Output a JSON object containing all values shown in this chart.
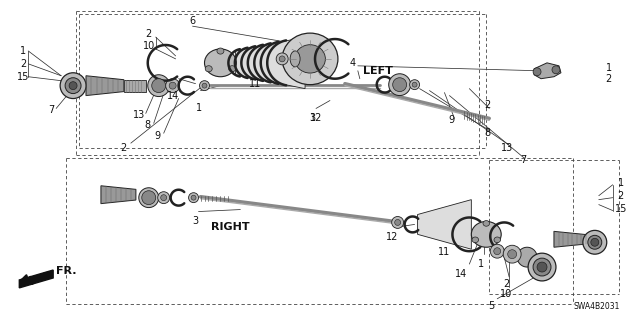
{
  "bg_color": "#ffffff",
  "fig_width": 6.4,
  "fig_height": 3.19,
  "dpi": 100,
  "part_number_label": "SWA4B2031",
  "direction_label": "FR.",
  "left_label": "LEFT",
  "right_label": "RIGHT",
  "line_color": "#222222",
  "gray_light": "#cccccc",
  "gray_mid": "#999999",
  "gray_dark": "#666666",
  "dash_color": "#444444",
  "label_fs": 7.0,
  "label_color": "#111111"
}
